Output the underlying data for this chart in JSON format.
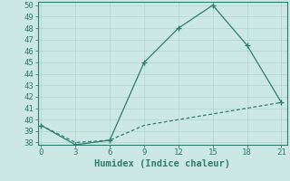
{
  "xlabel": "Humidex (Indice chaleur)",
  "x": [
    0,
    3,
    6,
    9,
    12,
    15,
    18,
    21
  ],
  "y_solid": [
    39.5,
    37.8,
    38.2,
    45.0,
    48.0,
    50.0,
    46.5,
    41.5
  ],
  "y_dashed": [
    39.5,
    38.0,
    38.2,
    39.5,
    40.0,
    40.5,
    41.0,
    41.5
  ],
  "line_color": "#2e7d6e",
  "bg_color": "#cce8e4",
  "grid_color": "#aed4cf",
  "text_color": "#2e7d6e",
  "ylim_min": 37.8,
  "ylim_max": 50.3,
  "yticks": [
    38,
    39,
    40,
    41,
    42,
    43,
    44,
    45,
    46,
    47,
    48,
    49,
    50
  ],
  "xticks": [
    0,
    3,
    6,
    9,
    12,
    15,
    18,
    21
  ],
  "tick_fontsize": 6.5,
  "label_fontsize": 7.5
}
